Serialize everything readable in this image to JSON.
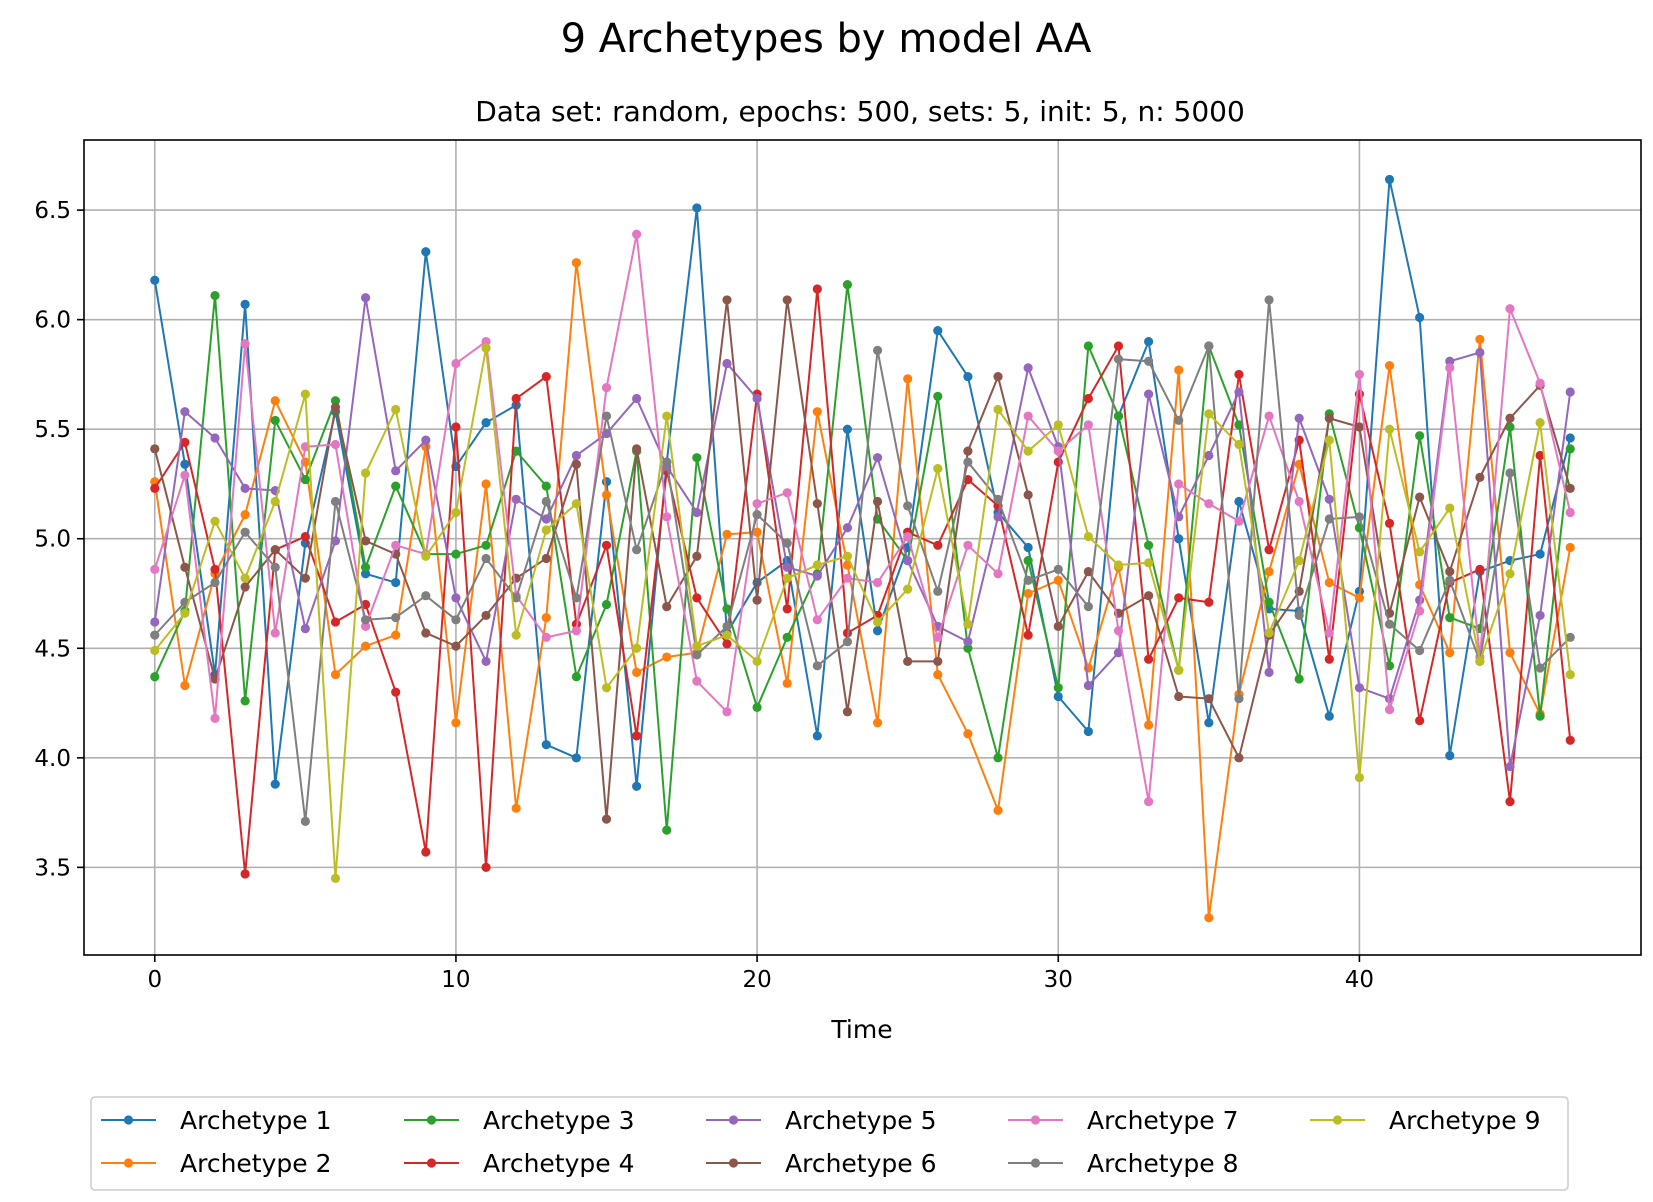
{
  "chart_data": {
    "type": "line",
    "title": "9 Archetypes by model AA",
    "subtitle": "Data set: random, epochs: 500, sets: 5, init: 5, n: 5000",
    "xlabel": "Time",
    "ylabel": "",
    "xlim": [
      -2.35,
      49.35
    ],
    "ylim": [
      3.1,
      6.82
    ],
    "xticks": [
      0,
      10,
      20,
      30,
      40
    ],
    "xtick_labels": [
      "0",
      "10",
      "20",
      "30",
      "40"
    ],
    "yticks": [
      3.5,
      4.0,
      4.5,
      5.0,
      5.5,
      6.0,
      6.5
    ],
    "ytick_labels": [
      "3.5",
      "4.0",
      "4.5",
      "5.0",
      "5.5",
      "6.0",
      "6.5"
    ],
    "grid": true,
    "legend_position": "bottom",
    "x": [
      0,
      1,
      2,
      3,
      4,
      5,
      6,
      7,
      8,
      9,
      10,
      11,
      12,
      13,
      14,
      15,
      16,
      17,
      18,
      19,
      20,
      21,
      22,
      23,
      24,
      25,
      26,
      27,
      28,
      29,
      30,
      31,
      32,
      33,
      34,
      35,
      36,
      37,
      38,
      39,
      40,
      41,
      42,
      43,
      44,
      45,
      46,
      47
    ],
    "series": [
      {
        "name": "Archetype 1",
        "color": "#1f77b4",
        "values": [
          6.18,
          5.34,
          4.38,
          6.07,
          3.88,
          4.98,
          5.58,
          4.84,
          4.8,
          6.31,
          5.33,
          5.53,
          5.61,
          4.06,
          4.0,
          5.26,
          3.87,
          5.35,
          6.51,
          4.57,
          4.8,
          4.9,
          4.1,
          5.5,
          4.58,
          4.96,
          5.95,
          5.74,
          5.12,
          4.96,
          4.28,
          4.12,
          5.56,
          5.9,
          5.0,
          4.16,
          5.17,
          4.68,
          4.67,
          4.19,
          4.76,
          6.64,
          6.01,
          4.01,
          4.85,
          4.9,
          4.93,
          5.46
        ]
      },
      {
        "name": "Archetype 2",
        "color": "#ff7f0e",
        "values": [
          5.26,
          4.33,
          4.84,
          5.11,
          5.63,
          5.35,
          4.38,
          4.51,
          4.56,
          5.42,
          4.16,
          5.25,
          3.77,
          4.64,
          6.26,
          5.2,
          4.39,
          4.46,
          4.48,
          5.02,
          5.03,
          4.34,
          5.58,
          4.88,
          4.16,
          5.73,
          4.38,
          4.11,
          3.76,
          4.75,
          4.81,
          4.41,
          4.87,
          4.15,
          5.77,
          3.27,
          4.29,
          4.85,
          5.34,
          4.8,
          4.73,
          5.79,
          4.79,
          4.48,
          5.91,
          4.48,
          4.2,
          4.96
        ]
      },
      {
        "name": "Archetype 3",
        "color": "#2ca02c",
        "values": [
          4.37,
          4.67,
          6.11,
          4.26,
          5.54,
          5.27,
          5.63,
          4.87,
          5.24,
          4.93,
          4.93,
          4.97,
          5.4,
          5.24,
          4.37,
          4.7,
          5.4,
          3.67,
          5.37,
          4.68,
          4.23,
          4.55,
          4.84,
          6.16,
          5.09,
          4.9,
          5.65,
          4.5,
          4.0,
          4.9,
          4.32,
          5.88,
          5.56,
          4.97,
          4.4,
          5.88,
          5.52,
          4.71,
          4.36,
          5.57,
          5.05,
          4.42,
          5.47,
          4.64,
          4.59,
          5.51,
          4.19,
          5.41
        ]
      },
      {
        "name": "Archetype 4",
        "color": "#d62728",
        "values": [
          5.23,
          5.44,
          4.86,
          3.47,
          4.95,
          5.01,
          4.62,
          4.7,
          4.3,
          3.57,
          5.51,
          3.5,
          5.64,
          5.74,
          4.61,
          4.97,
          4.1,
          5.31,
          4.73,
          4.52,
          5.66,
          4.68,
          6.14,
          4.57,
          4.65,
          5.03,
          4.97,
          5.27,
          5.15,
          4.56,
          5.35,
          5.64,
          5.88,
          4.45,
          4.73,
          4.71,
          5.75,
          4.95,
          5.45,
          4.45,
          5.66,
          5.07,
          4.17,
          4.8,
          4.86,
          3.8,
          5.38,
          4.08
        ]
      },
      {
        "name": "Archetype 5",
        "color": "#9467bd",
        "values": [
          4.62,
          5.58,
          5.46,
          5.23,
          5.22,
          4.59,
          4.99,
          6.1,
          5.31,
          5.45,
          4.73,
          4.44,
          5.18,
          5.09,
          5.38,
          5.48,
          5.64,
          5.33,
          5.12,
          5.8,
          5.64,
          4.87,
          4.83,
          5.05,
          5.37,
          4.9,
          4.6,
          4.53,
          5.1,
          5.78,
          5.42,
          4.33,
          4.48,
          5.66,
          5.1,
          5.38,
          5.67,
          4.39,
          5.55,
          5.18,
          4.32,
          4.27,
          4.72,
          5.81,
          5.85,
          3.96,
          4.65,
          5.67
        ]
      },
      {
        "name": "Archetype 6",
        "color": "#8c564b",
        "values": [
          5.41,
          4.87,
          4.36,
          4.78,
          4.95,
          4.82,
          5.6,
          4.99,
          4.93,
          4.57,
          4.51,
          4.65,
          4.82,
          4.91,
          5.34,
          3.72,
          5.41,
          4.69,
          4.92,
          6.09,
          4.72,
          6.09,
          5.16,
          4.21,
          5.17,
          4.44,
          4.44,
          5.4,
          5.74,
          5.2,
          4.6,
          4.85,
          4.66,
          4.74,
          4.28,
          4.27,
          4.0,
          4.56,
          4.76,
          5.55,
          5.51,
          4.66,
          5.19,
          4.85,
          5.28,
          5.55,
          5.7,
          5.23
        ]
      },
      {
        "name": "Archetype 7",
        "color": "#e377c2",
        "values": [
          4.86,
          5.29,
          4.18,
          5.89,
          4.57,
          5.42,
          5.43,
          4.6,
          4.97,
          4.93,
          5.8,
          5.9,
          4.74,
          4.55,
          4.58,
          5.69,
          6.39,
          5.1,
          4.35,
          4.21,
          5.16,
          5.21,
          4.63,
          4.82,
          4.8,
          5.01,
          4.55,
          4.97,
          4.84,
          5.56,
          5.4,
          5.52,
          4.58,
          3.8,
          5.25,
          5.16,
          5.08,
          5.56,
          5.17,
          4.57,
          5.75,
          4.22,
          4.67,
          5.78,
          4.46,
          6.05,
          5.71,
          5.12
        ]
      },
      {
        "name": "Archetype 8",
        "color": "#7f7f7f",
        "values": [
          4.56,
          4.71,
          4.8,
          5.03,
          4.87,
          3.71,
          5.17,
          4.63,
          4.64,
          4.74,
          4.63,
          4.91,
          4.73,
          5.17,
          4.73,
          5.56,
          4.95,
          5.35,
          4.47,
          4.6,
          5.11,
          4.98,
          4.42,
          4.53,
          5.86,
          5.15,
          4.76,
          5.35,
          5.18,
          4.81,
          4.86,
          4.69,
          5.82,
          5.81,
          5.54,
          5.88,
          4.27,
          6.09,
          4.65,
          5.09,
          5.1,
          4.61,
          4.49,
          4.81,
          4.44,
          5.3,
          4.41,
          4.55
        ]
      },
      {
        "name": "Archetype 9",
        "color": "#bcbd22",
        "values": [
          4.49,
          4.66,
          5.08,
          4.82,
          5.17,
          5.66,
          3.45,
          5.3,
          5.59,
          4.92,
          5.12,
          5.87,
          4.56,
          5.04,
          5.16,
          4.32,
          4.5,
          5.56,
          4.51,
          4.56,
          4.44,
          4.82,
          4.88,
          4.92,
          4.62,
          4.77,
          5.32,
          4.61,
          5.59,
          5.4,
          5.52,
          5.01,
          4.88,
          4.89,
          4.4,
          5.57,
          5.43,
          4.57,
          4.9,
          5.45,
          3.91,
          5.5,
          4.94,
          5.14,
          4.44,
          4.84,
          5.53,
          4.38
        ]
      }
    ]
  }
}
